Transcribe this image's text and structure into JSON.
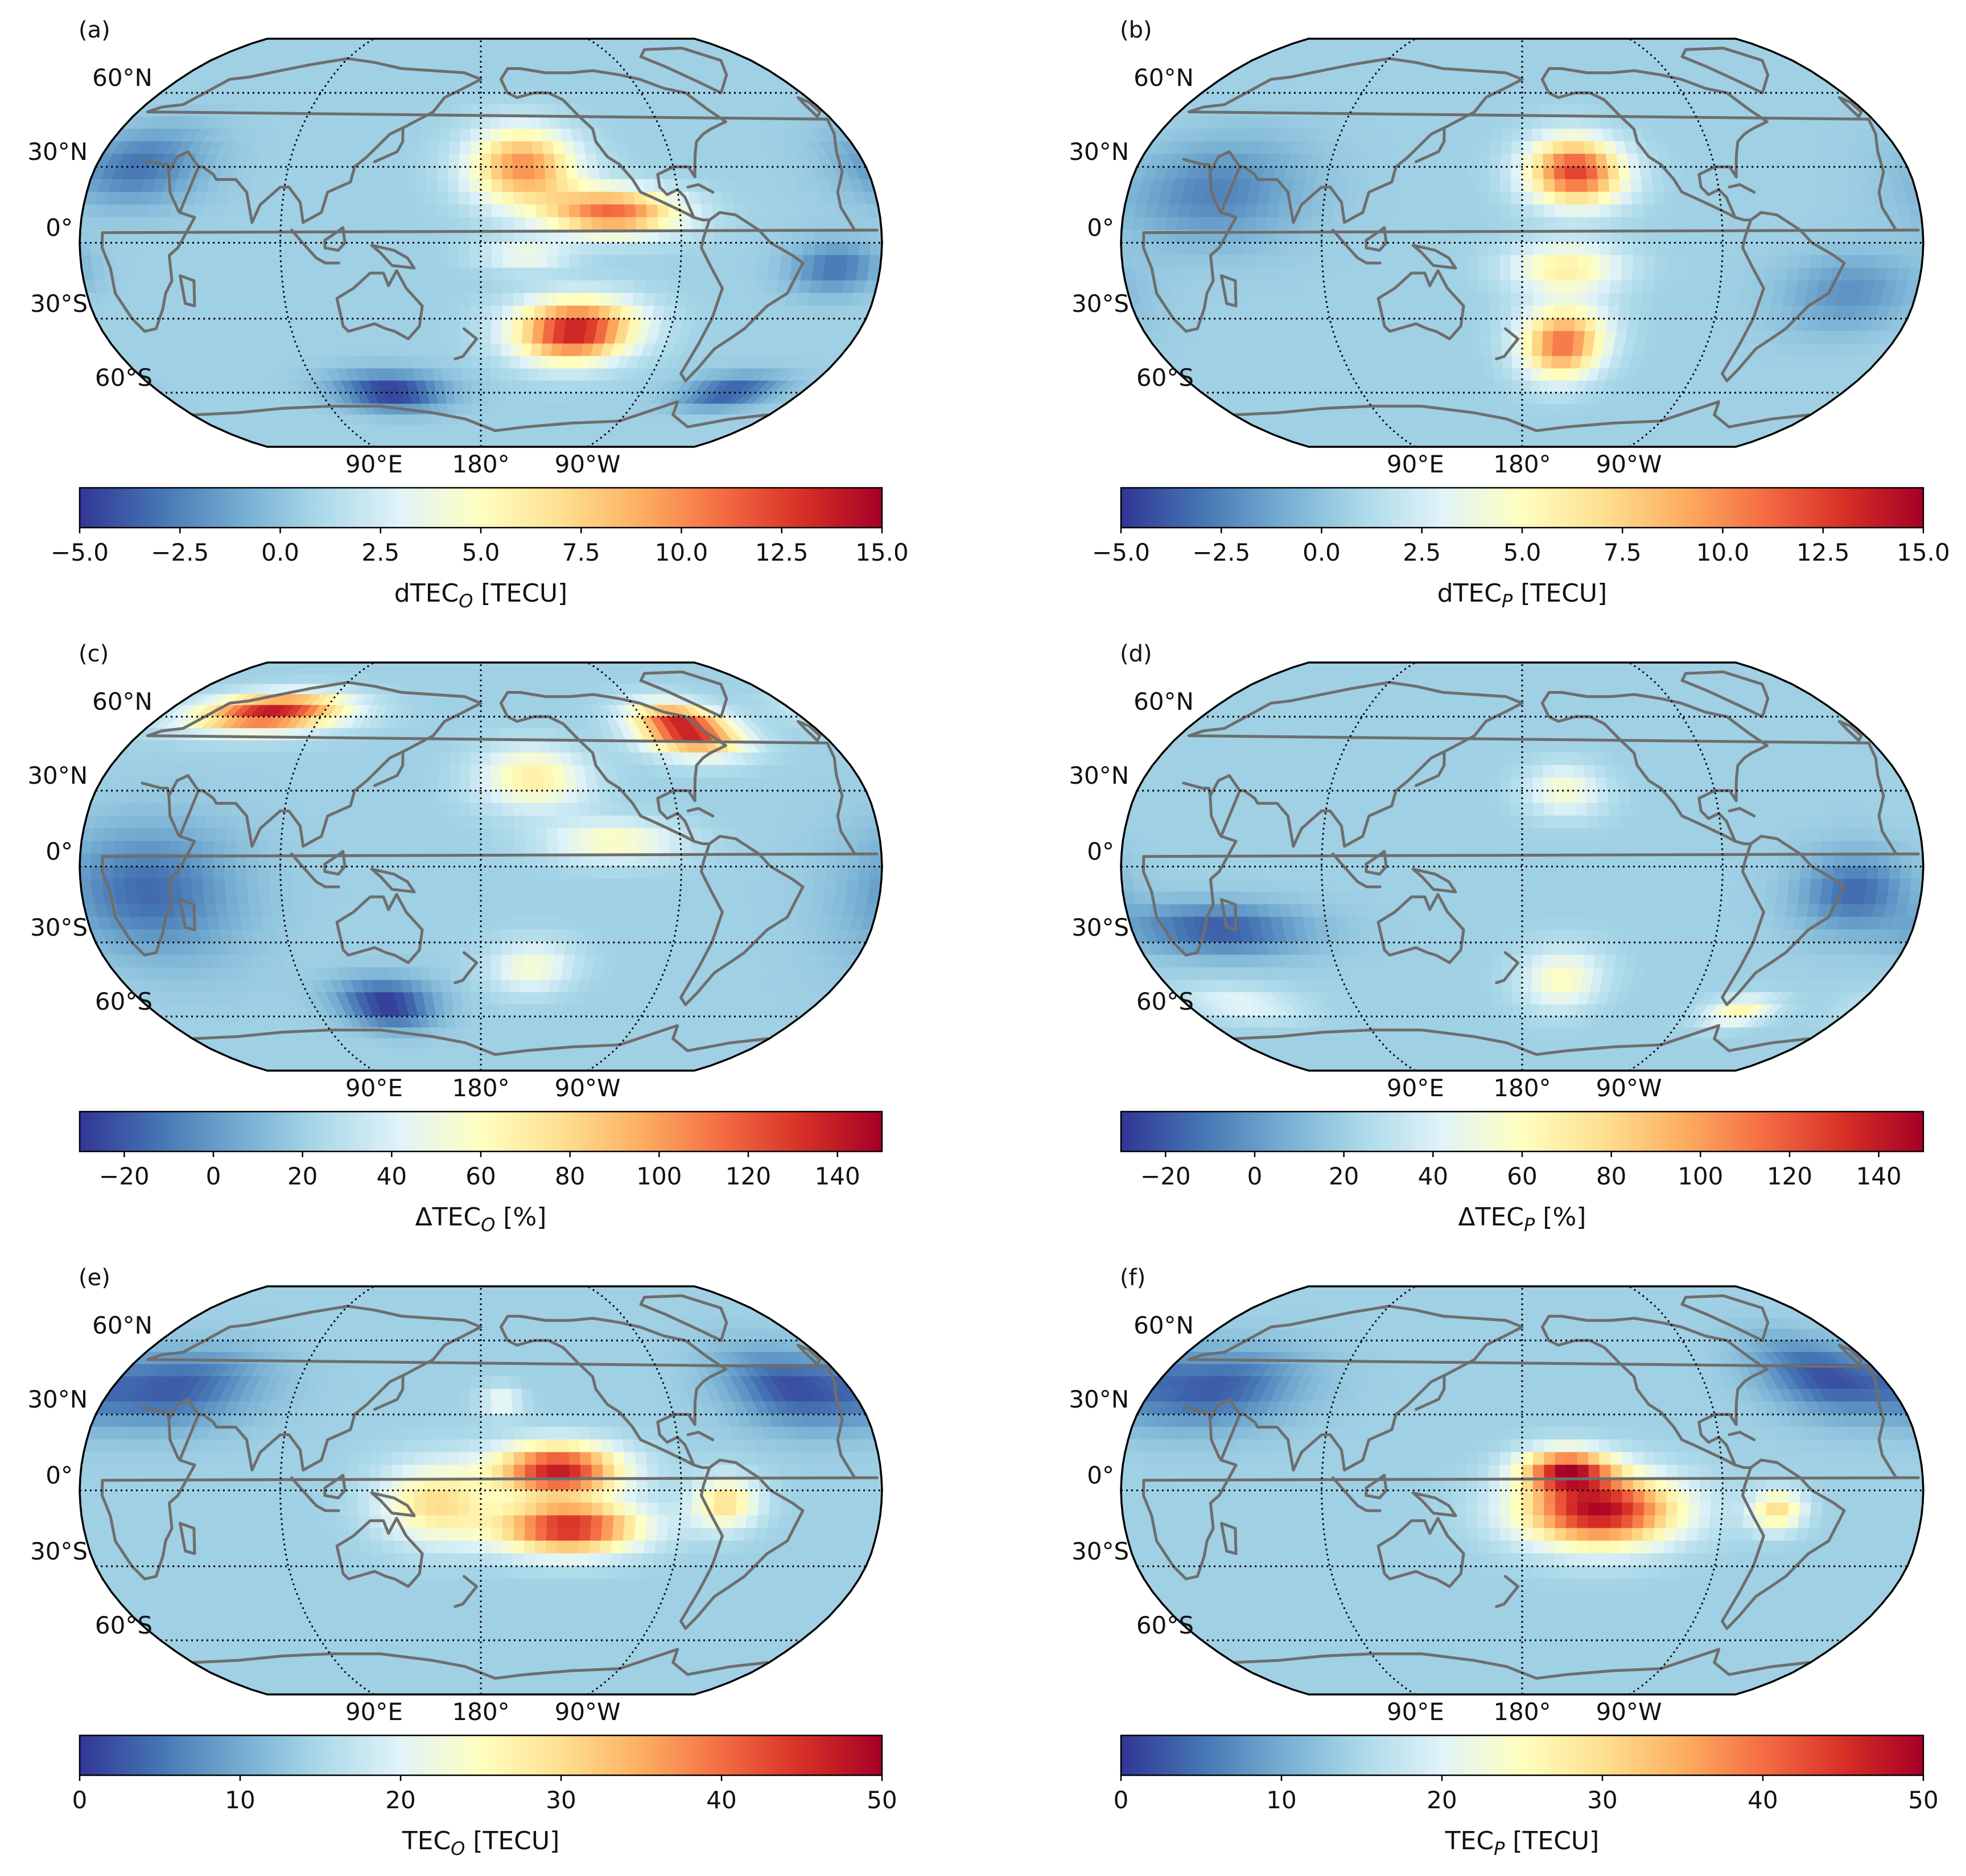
{
  "figure": {
    "projection": "Robinson",
    "central_longitude": "180°",
    "colormap": "RdYlBu_r",
    "colormap_stops": [
      "#313695",
      "#4575b4",
      "#74add1",
      "#abd9e9",
      "#e0f3f8",
      "#ffffbf",
      "#fee090",
      "#fdae61",
      "#f46d43",
      "#d73027",
      "#a50026"
    ],
    "coastline_color": "#6e6e6e"
  },
  "chart_data": [
    {
      "type": "heatmap",
      "panel": "(a)",
      "lat_labels": [
        "60°N",
        "30°N",
        "0°",
        "30°S",
        "60°S"
      ],
      "lon_labels": [
        "90°E",
        "180°",
        "90°W"
      ],
      "colorbar": {
        "label_main": "dTEC",
        "label_sub": "O",
        "label_unit": " [TECU]",
        "range": [
          -5,
          15
        ],
        "ticks": [
          "−5.0",
          "−2.5",
          "0.0",
          "2.5",
          "5.0",
          "7.5",
          "10.0",
          "12.5",
          "15.0"
        ]
      },
      "features": [
        {
          "lon": 200,
          "lat": 30,
          "value": 10,
          "spread_lon": 25,
          "spread_lat": 15
        },
        {
          "lon": 240,
          "lat": 12,
          "value": 11,
          "spread_lon": 30,
          "spread_lat": 9
        },
        {
          "lon": 225,
          "lat": -35,
          "value": 14,
          "spread_lon": 28,
          "spread_lat": 12
        },
        {
          "lon": 200,
          "lat": -5,
          "value": 4,
          "spread_lon": 20,
          "spread_lat": 6
        },
        {
          "lon": 130,
          "lat": -60,
          "value": -5,
          "spread_lon": 30,
          "spread_lat": 8
        },
        {
          "lon": 320,
          "lat": -60,
          "value": -4,
          "spread_lon": 25,
          "spread_lat": 7
        },
        {
          "lon": 20,
          "lat": 30,
          "value": -3,
          "spread_lon": 30,
          "spread_lat": 15
        },
        {
          "lon": 340,
          "lat": -10,
          "value": -3,
          "spread_lon": 20,
          "spread_lat": 10
        }
      ]
    },
    {
      "type": "heatmap",
      "panel": "(b)",
      "lat_labels": [
        "60°N",
        "30°N",
        "0°",
        "30°S",
        "60°S"
      ],
      "lon_labels": [
        "90°E",
        "180°",
        "90°W"
      ],
      "colorbar": {
        "label_main": "dTEC",
        "label_sub": "P",
        "label_unit": " [TECU]",
        "range": [
          -5,
          15
        ],
        "ticks": [
          "−5.0",
          "−2.5",
          "0.0",
          "2.5",
          "5.0",
          "7.5",
          "10.0",
          "12.5",
          "15.0"
        ]
      },
      "features": [
        {
          "lon": 205,
          "lat": 28,
          "value": 12.5,
          "spread_lon": 22,
          "spread_lat": 13
        },
        {
          "lon": 200,
          "lat": -10,
          "value": 6,
          "spread_lon": 25,
          "spread_lat": 10
        },
        {
          "lon": 200,
          "lat": -40,
          "value": 11,
          "spread_lon": 20,
          "spread_lat": 14
        },
        {
          "lon": 40,
          "lat": 20,
          "value": -2.5,
          "spread_lon": 40,
          "spread_lat": 20
        },
        {
          "lon": 330,
          "lat": -20,
          "value": -2,
          "spread_lon": 30,
          "spread_lat": 15
        }
      ]
    },
    {
      "type": "heatmap",
      "panel": "(c)",
      "lat_labels": [
        "60°N",
        "30°N",
        "0°",
        "30°S",
        "60°S"
      ],
      "lon_labels": [
        "90°E",
        "180°",
        "90°W"
      ],
      "colorbar": {
        "label_main": "ΔTEC",
        "label_sub": "O",
        "label_unit": " [%]",
        "range": [
          -30,
          150
        ],
        "ticks": [
          "−20",
          "0",
          "20",
          "40",
          "60",
          "80",
          "100",
          "120",
          "140"
        ]
      },
      "features": [
        {
          "lon": 60,
          "lat": 62,
          "value": 140,
          "spread_lon": 40,
          "spread_lat": 8
        },
        {
          "lon": 290,
          "lat": 55,
          "value": 145,
          "spread_lon": 25,
          "spread_lat": 10
        },
        {
          "lon": 205,
          "lat": 35,
          "value": 70,
          "spread_lon": 25,
          "spread_lat": 12
        },
        {
          "lon": 240,
          "lat": 10,
          "value": 60,
          "spread_lon": 30,
          "spread_lat": 8
        },
        {
          "lon": 205,
          "lat": -40,
          "value": 55,
          "spread_lon": 20,
          "spread_lat": 10
        },
        {
          "lon": 130,
          "lat": -55,
          "value": -30,
          "spread_lon": 25,
          "spread_lat": 10
        },
        {
          "lon": 30,
          "lat": -10,
          "value": -15,
          "spread_lon": 40,
          "spread_lat": 25
        }
      ]
    },
    {
      "type": "heatmap",
      "panel": "(d)",
      "lat_labels": [
        "60°N",
        "30°N",
        "0°",
        "30°S",
        "60°S"
      ],
      "lon_labels": [
        "90°E",
        "180°",
        "90°W"
      ],
      "colorbar": {
        "label_main": "ΔTEC",
        "label_sub": "P",
        "label_unit": " [%]",
        "range": [
          -30,
          150
        ],
        "ticks": [
          "−20",
          "0",
          "20",
          "40",
          "60",
          "80",
          "100",
          "120",
          "140"
        ]
      },
      "features": [
        {
          "lon": 200,
          "lat": 30,
          "value": 55,
          "spread_lon": 18,
          "spread_lat": 10
        },
        {
          "lon": 200,
          "lat": -45,
          "value": 60,
          "spread_lon": 20,
          "spread_lat": 12
        },
        {
          "lon": 300,
          "lat": -58,
          "value": 65,
          "spread_lon": 18,
          "spread_lat": 6
        },
        {
          "lon": 30,
          "lat": -55,
          "value": 45,
          "spread_lon": 30,
          "spread_lat": 7
        },
        {
          "lon": 40,
          "lat": -25,
          "value": -20,
          "spread_lon": 40,
          "spread_lat": 10
        },
        {
          "lon": 330,
          "lat": -10,
          "value": -15,
          "spread_lon": 25,
          "spread_lat": 15
        }
      ]
    },
    {
      "type": "heatmap",
      "panel": "(e)",
      "lat_labels": [
        "60°N",
        "30°N",
        "0°",
        "30°S",
        "60°S"
      ],
      "lon_labels": [
        "90°E",
        "180°",
        "90°W"
      ],
      "colorbar": {
        "label_main": "TEC",
        "label_sub": "O",
        "label_unit": "  [TECU]",
        "range": [
          0,
          50
        ],
        "ticks": [
          "0",
          "10",
          "20",
          "30",
          "40",
          "50"
        ]
      },
      "features": [
        {
          "lon": 215,
          "lat": 8,
          "value": 47,
          "spread_lon": 28,
          "spread_lat": 10
        },
        {
          "lon": 220,
          "lat": -15,
          "value": 46,
          "spread_lon": 32,
          "spread_lat": 10
        },
        {
          "lon": 160,
          "lat": -5,
          "value": 30,
          "spread_lon": 25,
          "spread_lat": 15
        },
        {
          "lon": 290,
          "lat": -5,
          "value": 30,
          "spread_lon": 15,
          "spread_lat": 10
        },
        {
          "lon": 190,
          "lat": 35,
          "value": 22,
          "spread_lon": 10,
          "spread_lat": 6
        },
        {
          "lon": 30,
          "lat": 40,
          "value": 3,
          "spread_lon": 40,
          "spread_lat": 15
        },
        {
          "lon": 330,
          "lat": 40,
          "value": 3,
          "spread_lon": 30,
          "spread_lat": 15
        }
      ]
    },
    {
      "type": "heatmap",
      "panel": "(f)",
      "lat_labels": [
        "60°N",
        "30°N",
        "0°",
        "30°S",
        "60°S"
      ],
      "lon_labels": [
        "90°E",
        "180°",
        "90°W"
      ],
      "colorbar": {
        "label_main": "TEC",
        "label_sub": "P",
        "label_unit": " [TECU]",
        "range": [
          0,
          50
        ],
        "ticks": [
          "0",
          "10",
          "20",
          "30",
          "40",
          "50"
        ]
      },
      "features": [
        {
          "lon": 215,
          "lat": -8,
          "value": 49,
          "spread_lon": 35,
          "spread_lat": 14
        },
        {
          "lon": 200,
          "lat": 8,
          "value": 42,
          "spread_lon": 20,
          "spread_lat": 8
        },
        {
          "lon": 295,
          "lat": -8,
          "value": 30,
          "spread_lon": 12,
          "spread_lat": 8
        },
        {
          "lon": 30,
          "lat": 40,
          "value": 3,
          "spread_lon": 40,
          "spread_lat": 15
        },
        {
          "lon": 330,
          "lat": 45,
          "value": 3,
          "spread_lon": 30,
          "spread_lat": 15
        }
      ]
    }
  ]
}
